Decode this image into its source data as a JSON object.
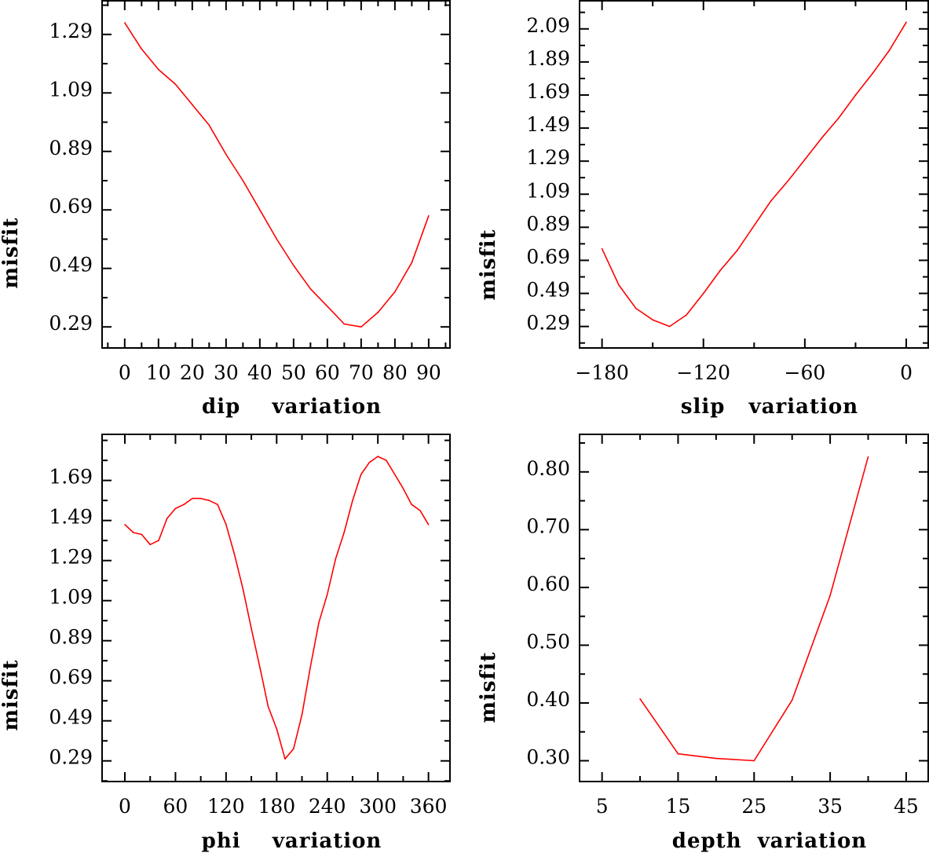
{
  "chart_data": [
    {
      "type": "line",
      "title": "",
      "xlabel": "dip    variation",
      "ylabel": "misfit",
      "xlim": [
        -6.7,
        96.3
      ],
      "ylim": [
        0.218,
        1.405
      ],
      "xticks": [
        0,
        10,
        20,
        30,
        40,
        50,
        60,
        70,
        80,
        90
      ],
      "xtick_labels": [
        "0",
        "10",
        "20",
        "30",
        "40",
        "50",
        "60",
        "70",
        "80",
        "90"
      ],
      "xminor_step": 5,
      "yticks": [
        0.29,
        0.49,
        0.69,
        0.89,
        1.09,
        1.29
      ],
      "ytick_labels": [
        "0.29",
        "0.49",
        "0.69",
        "0.89",
        "1.09",
        "1.29"
      ],
      "yminor_step": 0.1,
      "line_color": "#ff0000",
      "x": [
        0,
        5,
        10,
        15,
        20,
        25,
        30,
        35,
        40,
        45,
        50,
        55,
        60,
        65,
        70,
        75,
        80,
        85,
        90
      ],
      "y": [
        1.33,
        1.24,
        1.17,
        1.12,
        1.05,
        0.98,
        0.88,
        0.79,
        0.69,
        0.59,
        0.5,
        0.42,
        0.36,
        0.3,
        0.29,
        0.34,
        0.41,
        0.51,
        0.67
      ]
    },
    {
      "type": "line",
      "title": "",
      "xlabel": "slip   variation",
      "ylabel": "misfit",
      "xlim": [
        -193.3,
        13.0
      ],
      "ylim": [
        0.16,
        2.26
      ],
      "xticks": [
        -180,
        -120,
        -60,
        0
      ],
      "xtick_labels": [
        "−180",
        "−120",
        "−60",
        "0"
      ],
      "xminor_step": 30,
      "yticks": [
        0.29,
        0.49,
        0.69,
        0.89,
        1.09,
        1.29,
        1.49,
        1.69,
        1.89,
        2.09
      ],
      "ytick_labels": [
        "0.29",
        "0.49",
        "0.69",
        "0.89",
        "1.09",
        "1.29",
        "1.49",
        "1.69",
        "1.89",
        "2.09"
      ],
      "yminor_step": 0.1,
      "line_color": "#ff0000",
      "x": [
        -180,
        -170,
        -160,
        -150,
        -140,
        -130,
        -120,
        -110,
        -100,
        -90,
        -80,
        -70,
        -60,
        -50,
        -40,
        -30,
        -20,
        -10,
        0
      ],
      "y": [
        0.76,
        0.54,
        0.4,
        0.33,
        0.29,
        0.36,
        0.49,
        0.63,
        0.75,
        0.9,
        1.05,
        1.17,
        1.3,
        1.43,
        1.55,
        1.69,
        1.82,
        1.96,
        2.13
      ]
    },
    {
      "type": "line",
      "title": "",
      "xlabel": "phi    variation",
      "ylabel": "misfit",
      "xlim": [
        -27,
        385.5
      ],
      "ylim": [
        0.187,
        1.92
      ],
      "xticks": [
        0,
        60,
        120,
        180,
        240,
        300,
        360
      ],
      "xtick_labels": [
        "0",
        "60",
        "120",
        "180",
        "240",
        "300",
        "360"
      ],
      "xminor_step": 30,
      "yticks": [
        0.29,
        0.49,
        0.69,
        0.89,
        1.09,
        1.29,
        1.49,
        1.69
      ],
      "ytick_labels": [
        "0.29",
        "0.49",
        "0.69",
        "0.89",
        "1.09",
        "1.29",
        "1.49",
        "1.69"
      ],
      "yminor_step": 0.1,
      "line_color": "#ff0000",
      "x": [
        0,
        10,
        20,
        30,
        40,
        50,
        60,
        70,
        80,
        90,
        100,
        110,
        120,
        130,
        140,
        150,
        160,
        170,
        180,
        190,
        200,
        210,
        220,
        230,
        240,
        250,
        260,
        270,
        280,
        290,
        300,
        310,
        320,
        330,
        340,
        350,
        360
      ],
      "y": [
        1.47,
        1.43,
        1.42,
        1.37,
        1.39,
        1.5,
        1.55,
        1.57,
        1.6,
        1.6,
        1.59,
        1.57,
        1.47,
        1.32,
        1.15,
        0.95,
        0.76,
        0.56,
        0.45,
        0.3,
        0.35,
        0.52,
        0.76,
        0.98,
        1.12,
        1.3,
        1.43,
        1.59,
        1.72,
        1.78,
        1.81,
        1.79,
        1.72,
        1.65,
        1.57,
        1.54,
        1.47
      ]
    },
    {
      "type": "line",
      "title": "",
      "xlabel": "depth  variation",
      "ylabel": "misfit",
      "xlim": [
        2.04,
        47.9
      ],
      "ylim": [
        0.264,
        0.865
      ],
      "xticks": [
        5,
        15,
        25,
        35,
        45
      ],
      "xtick_labels": [
        "5",
        "15",
        "25",
        "35",
        "45"
      ],
      "xminor_step": 5,
      "yticks": [
        0.3,
        0.4,
        0.5,
        0.6,
        0.7,
        0.8
      ],
      "ytick_labels": [
        "0.30",
        "0.40",
        "0.50",
        "0.60",
        "0.70",
        "0.80"
      ],
      "yminor_step": 0.05,
      "line_color": "#ff0000",
      "x": [
        10,
        15,
        20,
        25,
        30,
        35,
        40
      ],
      "y": [
        0.407,
        0.312,
        0.304,
        0.3,
        0.405,
        0.586,
        0.826
      ]
    }
  ]
}
